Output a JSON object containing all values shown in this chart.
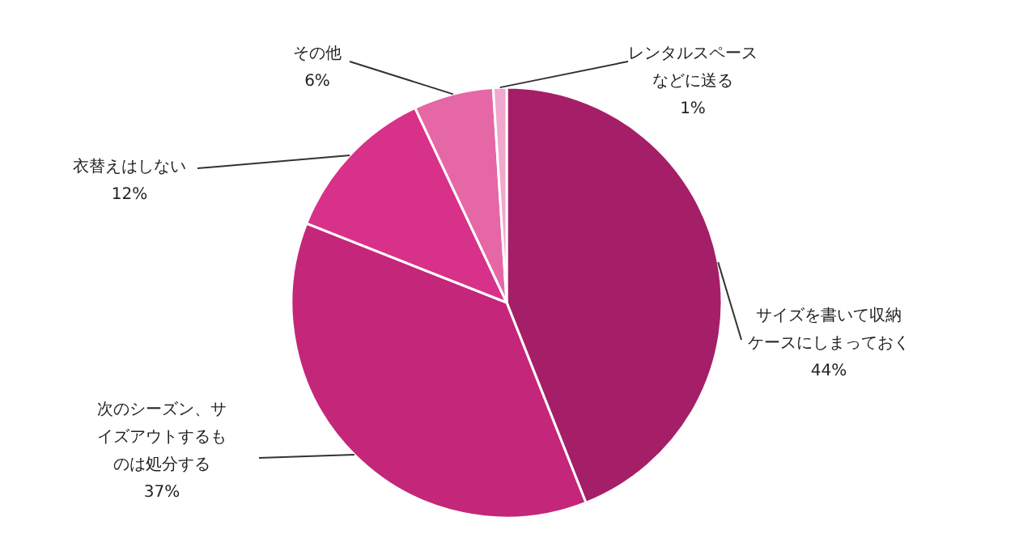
{
  "chart_data": {
    "type": "pie",
    "categories": [
      "サイズを書いて収納ケースにしまっておく",
      "次のシーズン、サイズアウトするものは処分する",
      "衣替えはしない",
      "その他",
      "レンタルスペースなどに送る"
    ],
    "values": [
      44,
      37,
      12,
      6,
      1
    ],
    "value_labels": [
      "44%",
      "37%",
      "12%",
      "6%",
      "1%"
    ],
    "colors": [
      "#a51f68",
      "#c4267a",
      "#d8318a",
      "#e667a6",
      "#f0a8cc"
    ]
  }
}
